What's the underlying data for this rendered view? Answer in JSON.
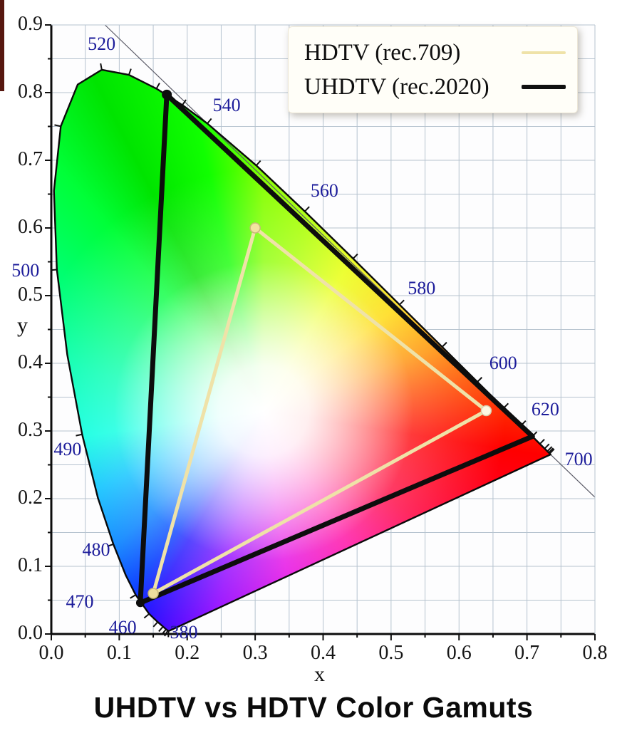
{
  "legend": {
    "items": [
      {
        "label": "HDTV (rec.709)",
        "color": "#efe2a8",
        "thickness": 4
      },
      {
        "label": "UHDTV (rec.2020)",
        "color": "#101010",
        "thickness": 6
      }
    ]
  },
  "chart_data": {
    "type": "area",
    "title": "UHDTV vs HDTV Color Gamuts",
    "xlabel": "x",
    "ylabel": "y",
    "xlim": [
      0,
      0.8
    ],
    "ylim": [
      0,
      0.9
    ],
    "x_tick_labels": [
      "0.0",
      "0.1",
      "0.2",
      "0.3",
      "0.4",
      "0.5",
      "0.6",
      "0.7",
      "0.8"
    ],
    "y_tick_labels": [
      "0.0",
      "0.1",
      "0.2",
      "0.3",
      "0.4",
      "0.5",
      "0.6",
      "0.7",
      "0.8",
      "0.9"
    ],
    "minor_tick_step": 0.05,
    "grid": true,
    "grid_color": "#b6c3cf",
    "wavelength_label_color": "#1c1c9a",
    "legend_position": "top-right",
    "series": [
      {
        "name": "HDTV (rec.709)",
        "color": "#efe2a8",
        "width": 5,
        "closed": true,
        "points": [
          [
            0.64,
            0.33
          ],
          [
            0.3,
            0.6
          ],
          [
            0.15,
            0.06
          ]
        ]
      },
      {
        "name": "UHDTV (rec.2020)",
        "color": "#0d0d0d",
        "width": 7,
        "closed": true,
        "points": [
          [
            0.708,
            0.292
          ],
          [
            0.17,
            0.797
          ],
          [
            0.131,
            0.046
          ]
        ]
      }
    ],
    "markers": [
      {
        "x": 0.17,
        "y": 0.797,
        "r": 7,
        "color": "#0d0d0d"
      },
      {
        "x": 0.131,
        "y": 0.046,
        "r": 6,
        "color": "#0d0d0d"
      },
      {
        "x": 0.3,
        "y": 0.6,
        "r": 7,
        "color": "#f3e3a0",
        "ring": "#c9b878"
      },
      {
        "x": 0.64,
        "y": 0.33,
        "r": 7,
        "color": "#fdf8e2",
        "ring": "#d8cfae"
      },
      {
        "x": 0.15,
        "y": 0.06,
        "r": 7,
        "color": "#eddd9e",
        "ring": "#c9b878"
      }
    ],
    "white_point": {
      "x": 0.3127,
      "y": 0.329
    },
    "spectral_locus": [
      [
        380,
        0.1741,
        0.005
      ],
      [
        410,
        0.1726,
        0.0048
      ],
      [
        420,
        0.1714,
        0.0051
      ],
      [
        430,
        0.1689,
        0.0069
      ],
      [
        440,
        0.1644,
        0.0109
      ],
      [
        450,
        0.1566,
        0.0177
      ],
      [
        460,
        0.144,
        0.0297
      ],
      [
        470,
        0.1241,
        0.0578
      ],
      [
        475,
        0.1096,
        0.0868
      ],
      [
        480,
        0.0913,
        0.1327
      ],
      [
        485,
        0.0687,
        0.2007
      ],
      [
        490,
        0.0454,
        0.295
      ],
      [
        495,
        0.0235,
        0.4127
      ],
      [
        500,
        0.0082,
        0.5384
      ],
      [
        505,
        0.0039,
        0.6548
      ],
      [
        510,
        0.0139,
        0.7502
      ],
      [
        515,
        0.0389,
        0.812
      ],
      [
        520,
        0.0743,
        0.8338
      ],
      [
        525,
        0.1142,
        0.8262
      ],
      [
        530,
        0.1547,
        0.8059
      ],
      [
        535,
        0.1929,
        0.7816
      ],
      [
        540,
        0.2296,
        0.7543
      ],
      [
        550,
        0.3016,
        0.6923
      ],
      [
        560,
        0.3731,
        0.6245
      ],
      [
        570,
        0.4441,
        0.5547
      ],
      [
        580,
        0.5125,
        0.4866
      ],
      [
        590,
        0.5752,
        0.4242
      ],
      [
        600,
        0.627,
        0.3725
      ],
      [
        610,
        0.6658,
        0.334
      ],
      [
        620,
        0.6915,
        0.3083
      ],
      [
        630,
        0.7079,
        0.292
      ],
      [
        640,
        0.719,
        0.2809
      ],
      [
        650,
        0.726,
        0.274
      ],
      [
        660,
        0.73,
        0.27
      ],
      [
        670,
        0.732,
        0.268
      ],
      [
        680,
        0.7334,
        0.2666
      ],
      [
        700,
        0.7347,
        0.2653
      ]
    ],
    "locus_ticks": [
      410,
      420,
      430,
      440,
      450,
      460,
      470,
      480,
      490,
      500,
      510,
      520,
      525,
      530,
      535,
      540,
      550,
      560,
      570,
      580,
      590,
      600,
      610,
      620,
      630,
      640,
      650,
      660,
      670,
      680
    ],
    "wavelength_labels": [
      {
        "text": "520",
        "x": 0.074,
        "y": 0.872
      },
      {
        "text": "540",
        "x": 0.258,
        "y": 0.781
      },
      {
        "text": "560",
        "x": 0.402,
        "y": 0.655
      },
      {
        "text": "580",
        "x": 0.545,
        "y": 0.511
      },
      {
        "text": "600",
        "x": 0.665,
        "y": 0.4
      },
      {
        "text": "620",
        "x": 0.727,
        "y": 0.332
      },
      {
        "text": "700",
        "x": 0.776,
        "y": 0.258
      },
      {
        "text": "500",
        "x": -0.038,
        "y": 0.537
      },
      {
        "text": "490",
        "x": 0.024,
        "y": 0.273
      },
      {
        "text": "480",
        "x": 0.066,
        "y": 0.124
      },
      {
        "text": "470",
        "x": 0.042,
        "y": 0.047
      },
      {
        "text": "460",
        "x": 0.105,
        "y": 0.01
      },
      {
        "text": "380",
        "x": 0.195,
        "y": 0.002
      }
    ],
    "tangent_line": {
      "x1": 0.079,
      "y1": 0.9,
      "x2": 0.8,
      "y2": 0.202
    }
  }
}
